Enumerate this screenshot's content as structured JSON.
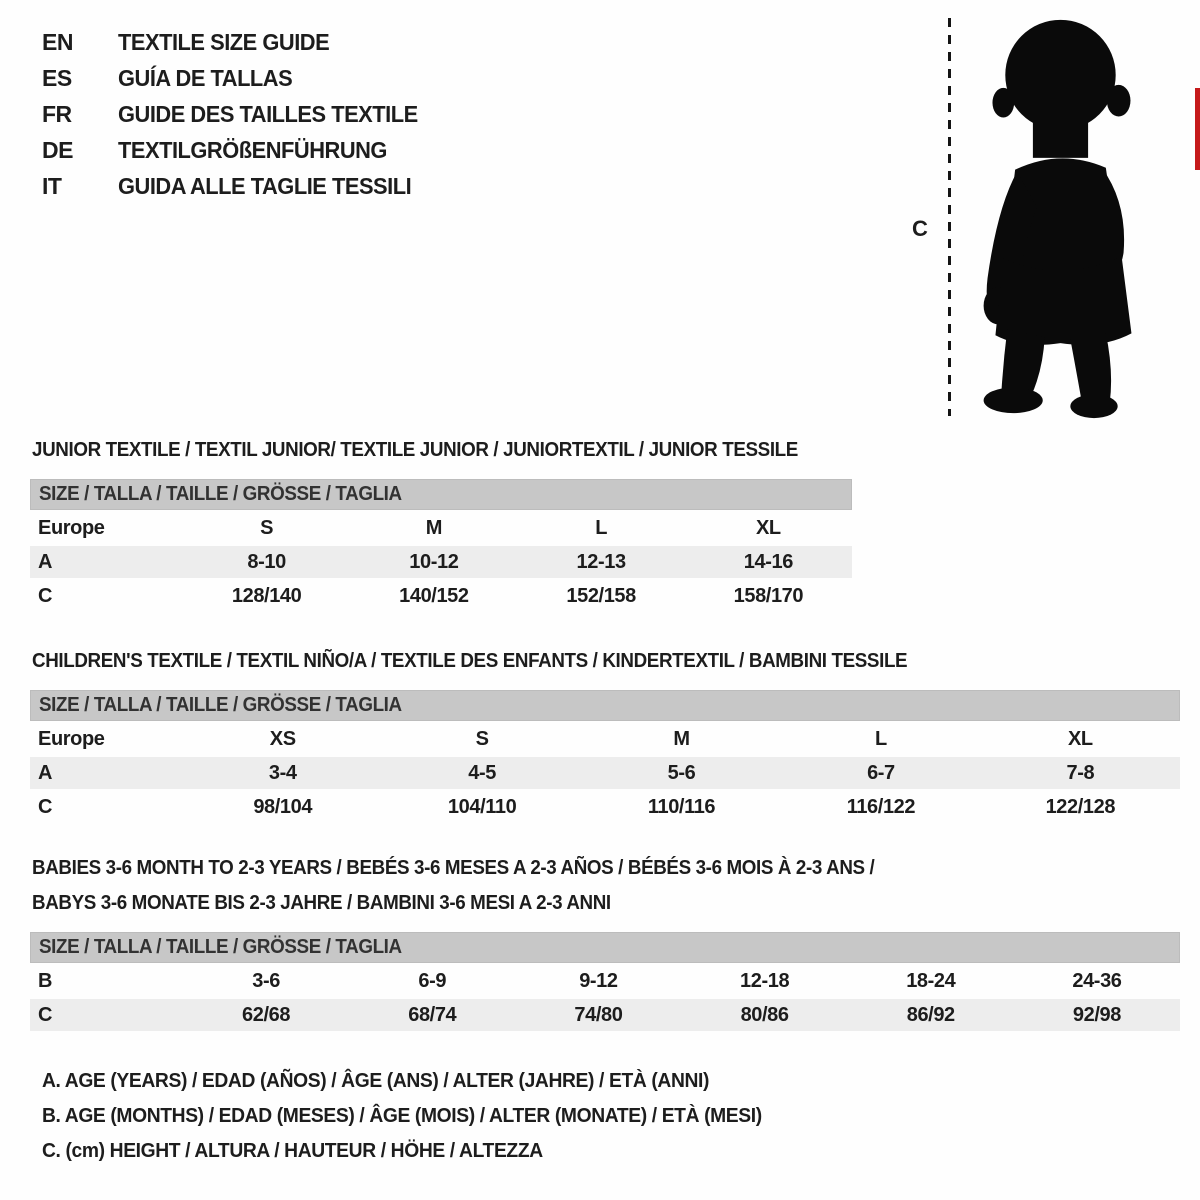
{
  "colors": {
    "header_bar": "#c7c7c7",
    "row_shade": "#ededed",
    "text": "#1d1d1d",
    "accent_red": "#c51a1b"
  },
  "header": {
    "languages": [
      {
        "code": "EN",
        "title": "TEXTILE SIZE GUIDE"
      },
      {
        "code": "ES",
        "title": "GUÍA DE TALLAS"
      },
      {
        "code": "FR",
        "title": "GUIDE DES TAILLES TEXTILE"
      },
      {
        "code": "DE",
        "title": "TEXTILGRÖßENFÜHRUNG"
      },
      {
        "code": "IT",
        "title": "GUIDA ALLE TAGLIE TESSILI"
      }
    ]
  },
  "figure": {
    "measure_label": "C",
    "silhouette": "baby-toddler-silhouette"
  },
  "sections": [
    {
      "id": "junior",
      "title_lines": [
        "JUNIOR TEXTILE / TEXTIL JUNIOR/ TEXTILE JUNIOR / JUNIORTEXTIL / JUNIOR TESSILE"
      ],
      "size_header": "SIZE / TALLA / TAILLE / GRÖSSE / TAGLIA",
      "rows": [
        {
          "label": "Europe",
          "values": [
            "S",
            "M",
            "L",
            "XL"
          ],
          "shaded": false
        },
        {
          "label": "A",
          "values": [
            "8-10",
            "10-12",
            "12-13",
            "14-16"
          ],
          "shaded": true
        },
        {
          "label": "C",
          "values": [
            "128/140",
            "140/152",
            "152/158",
            "158/170"
          ],
          "shaded": false
        }
      ]
    },
    {
      "id": "children",
      "title_lines": [
        "CHILDREN'S TEXTILE / TEXTIL NIÑO/A / TEXTILE DES ENFANTS / KINDERTEXTIL / BAMBINI TESSILE"
      ],
      "size_header": "SIZE / TALLA / TAILLE / GRÖSSE / TAGLIA",
      "rows": [
        {
          "label": "Europe",
          "values": [
            "XS",
            "S",
            "M",
            "L",
            "XL"
          ],
          "shaded": false
        },
        {
          "label": "A",
          "values": [
            "3-4",
            "4-5",
            "5-6",
            "6-7",
            "7-8"
          ],
          "shaded": true
        },
        {
          "label": "C",
          "values": [
            "98/104",
            "104/110",
            "110/116",
            "116/122",
            "122/128"
          ],
          "shaded": false
        }
      ]
    },
    {
      "id": "babies",
      "title_lines": [
        "BABIES 3-6 MONTH TO 2-3 YEARS / BEBÉS 3-6 MESES A 2-3 AÑOS / BÉBÉS 3-6 MOIS À 2-3 ANS /",
        "BABYS 3-6 MONATE BIS 2-3 JAHRE / BAMBINI 3-6 MESI A 2-3 ANNI"
      ],
      "size_header": "SIZE / TALLA / TAILLE / GRÖSSE / TAGLIA",
      "rows": [
        {
          "label": "B",
          "values": [
            "3-6",
            "6-9",
            "9-12",
            "12-18",
            "18-24",
            "24-36"
          ],
          "shaded": false
        },
        {
          "label": "C",
          "values": [
            "62/68",
            "68/74",
            "74/80",
            "80/86",
            "86/92",
            "92/98"
          ],
          "shaded": true
        }
      ]
    }
  ],
  "footnotes": [
    "A. AGE (YEARS) / EDAD (AÑOS) / ÂGE (ANS) / ALTER (JAHRE) / ETÀ (ANNI)",
    "B. AGE (MONTHS) / EDAD (MESES) / ÂGE (MOIS) / ALTER (MONATE) / ETÀ (MESI)",
    "C. (cm) HEIGHT / ALTURA / HAUTEUR / HÖHE / ALTEZZA"
  ]
}
